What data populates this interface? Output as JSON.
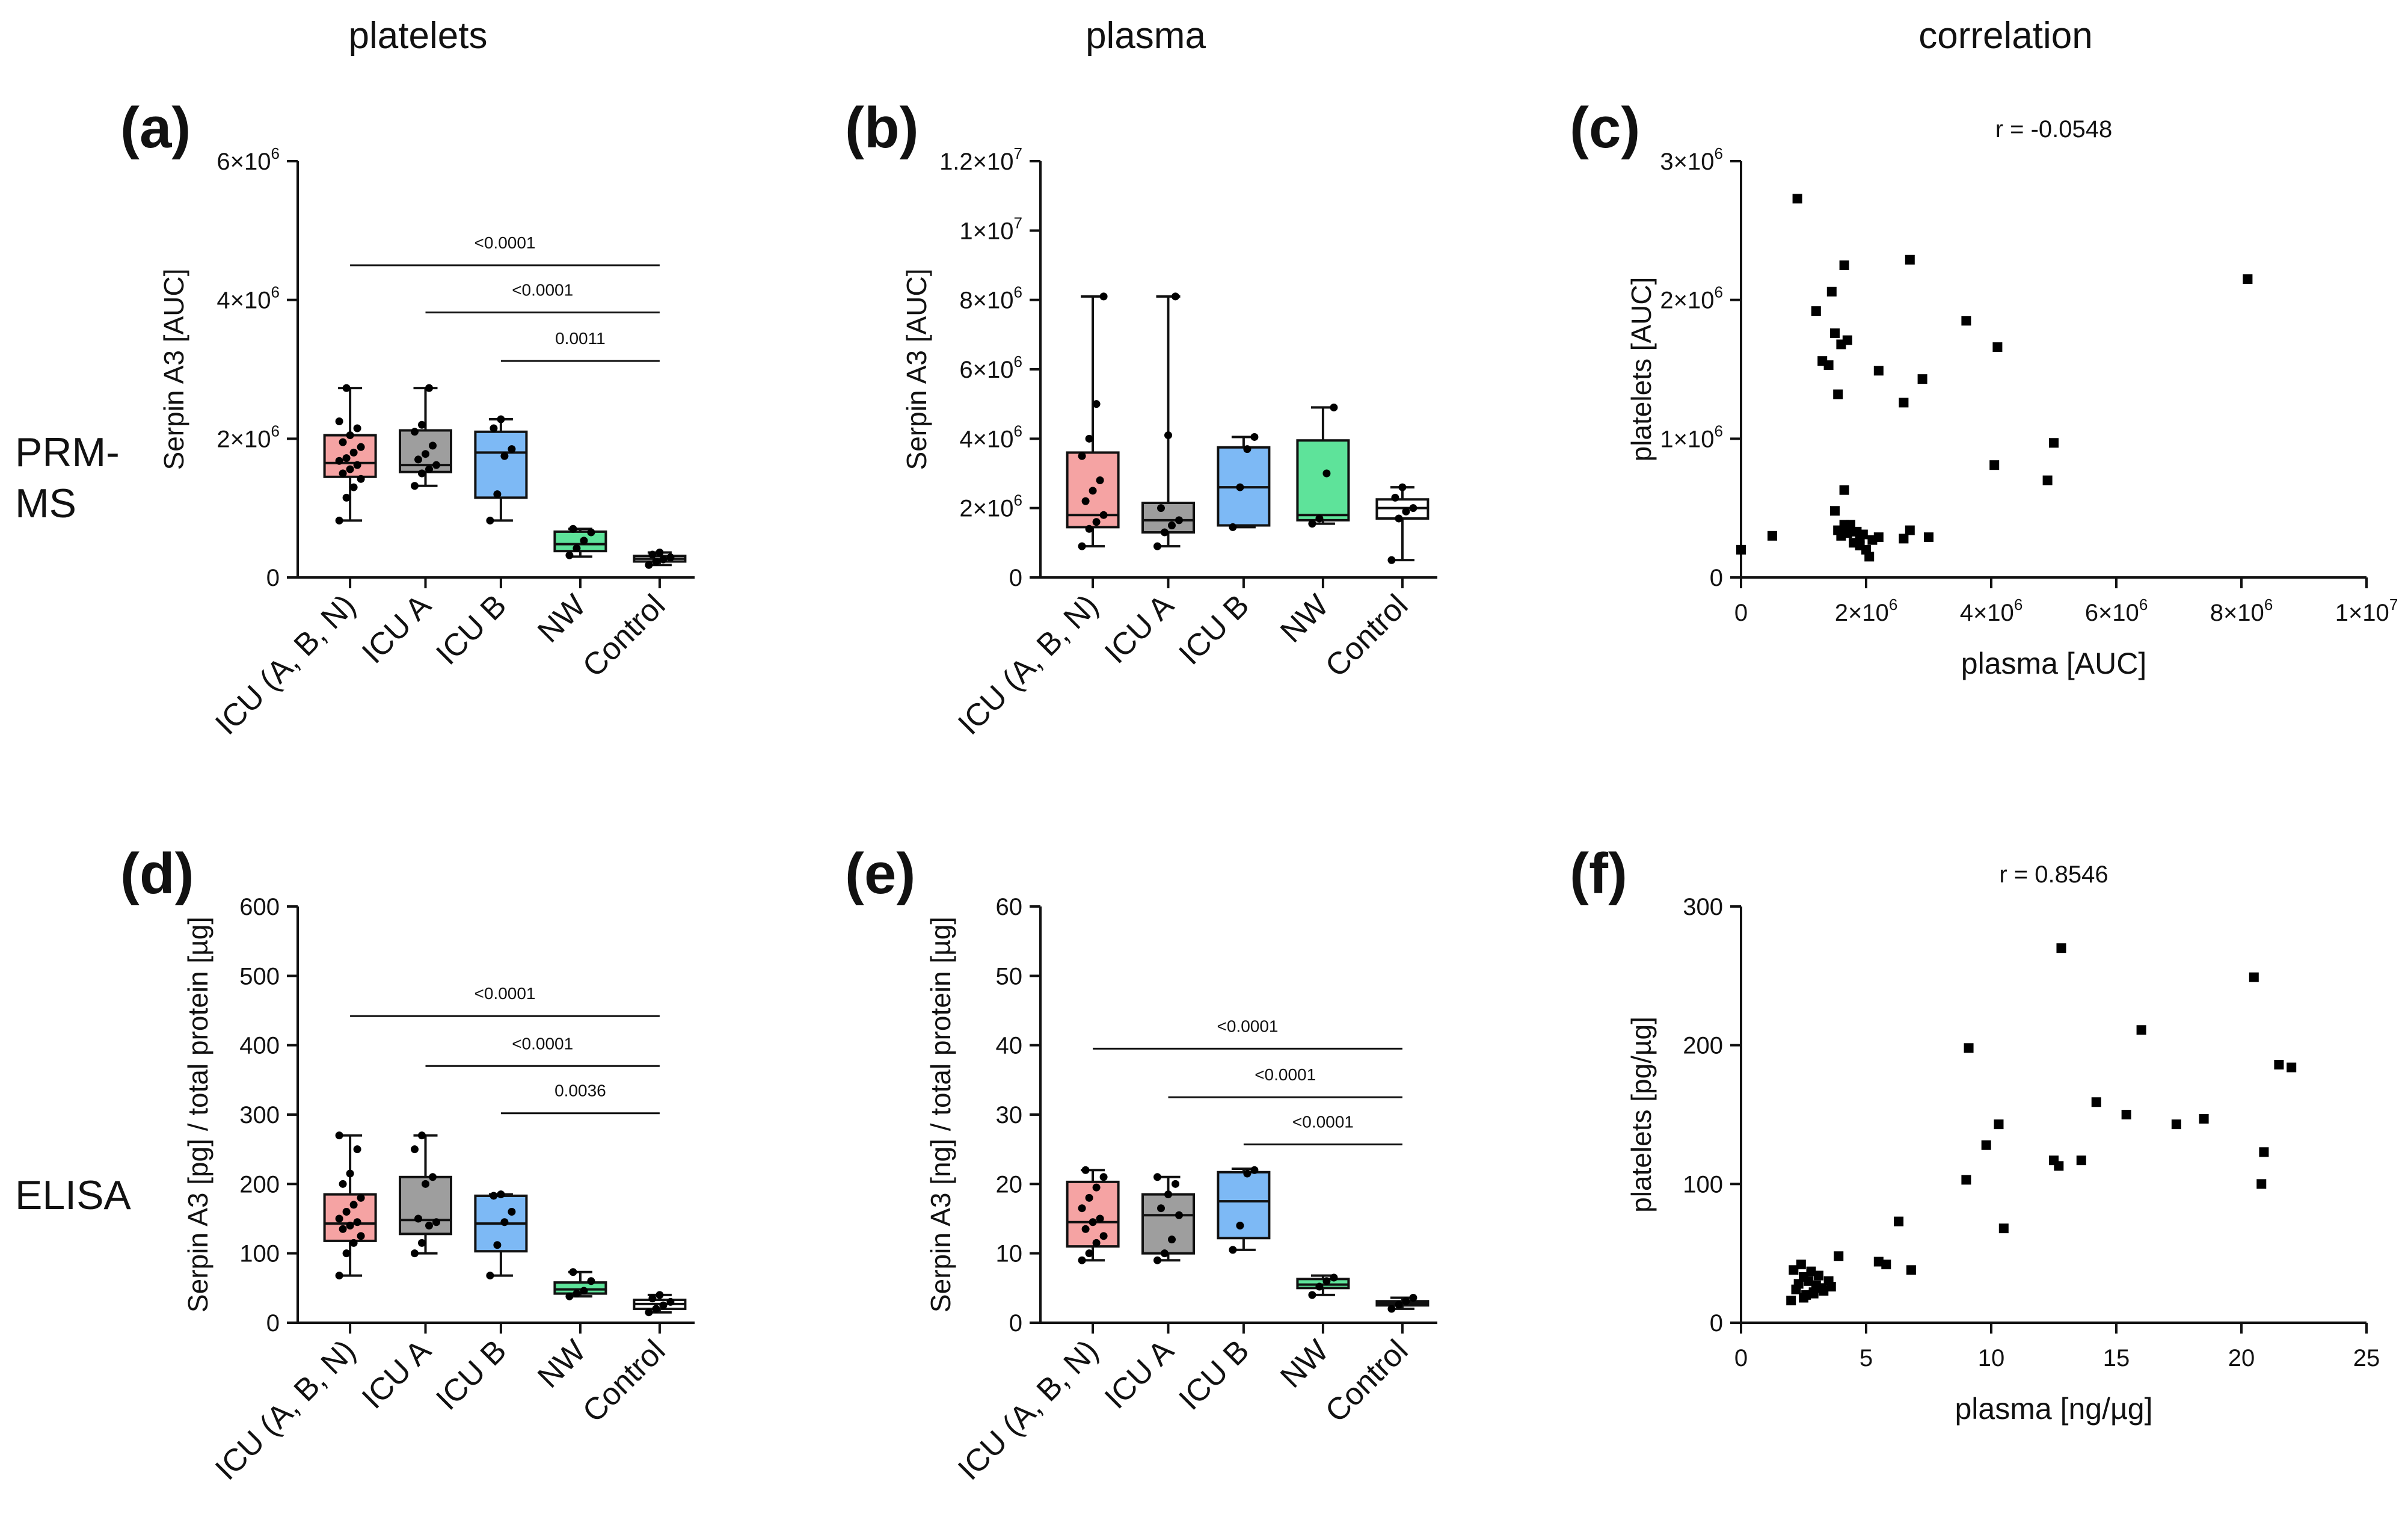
{
  "column_headers": [
    "platelets",
    "plasma",
    "correlation"
  ],
  "row_headers": [
    "PRM-\nMS",
    "ELISA"
  ],
  "colors": {
    "ICU (A, B, N)": "#f5a3a3",
    "ICU A": "#9e9e9e",
    "ICU B": "#7db9f5",
    "NW": "#5ee39a",
    "Control": "#ffffff",
    "axis": "#111111",
    "point": "#000000"
  },
  "chart_data": [
    {
      "id": "a",
      "label": "(a)",
      "type": "box",
      "ylabel": "Serpin A3 [AUC]",
      "ylim": [
        0,
        6000000
      ],
      "yticks": [
        {
          "v": 0,
          "m": "0"
        },
        {
          "v": 2000000,
          "m": "2×10",
          "e": "6"
        },
        {
          "v": 4000000,
          "m": "4×10",
          "e": "6"
        },
        {
          "v": 6000000,
          "m": "6×10",
          "e": "6"
        }
      ],
      "categories": [
        "ICU (A, B, N)",
        "ICU A",
        "ICU B",
        "NW",
        "Control"
      ],
      "boxes": [
        {
          "min": 820000,
          "q1": 1450000,
          "median": 1650000,
          "q3": 2050000,
          "max": 2730000,
          "points": [
            820000,
            1150000,
            1300000,
            1420000,
            1500000,
            1560000,
            1620000,
            1680000,
            1720000,
            1800000,
            1880000,
            1950000,
            2050000,
            2150000,
            2250000,
            2730000
          ]
        },
        {
          "min": 1320000,
          "q1": 1520000,
          "median": 1620000,
          "q3": 2120000,
          "max": 2730000,
          "points": [
            1320000,
            1500000,
            1560000,
            1620000,
            1700000,
            1780000,
            1900000,
            2100000,
            2200000,
            2730000
          ]
        },
        {
          "min": 820000,
          "q1": 1150000,
          "median": 1800000,
          "q3": 2100000,
          "max": 2280000,
          "points": [
            820000,
            1200000,
            1750000,
            1850000,
            2150000,
            2280000
          ]
        },
        {
          "min": 300000,
          "q1": 380000,
          "median": 480000,
          "q3": 660000,
          "max": 700000,
          "points": [
            320000,
            420000,
            530000,
            650000,
            700000
          ]
        },
        {
          "min": 180000,
          "q1": 230000,
          "median": 270000,
          "q3": 310000,
          "max": 360000,
          "points": [
            180000,
            230000,
            260000,
            290000,
            330000,
            360000
          ]
        }
      ],
      "comparisons": [
        {
          "from": 0,
          "to": 4,
          "y": 4500000,
          "label": "<0.0001"
        },
        {
          "from": 1,
          "to": 4,
          "y": 3820000,
          "label": "<0.0001"
        },
        {
          "from": 2,
          "to": 4,
          "y": 3120000,
          "label": "0.0011"
        }
      ]
    },
    {
      "id": "b",
      "label": "(b)",
      "type": "box",
      "ylabel": "Serpin A3 [AUC]",
      "ylim": [
        0,
        12000000
      ],
      "yticks": [
        {
          "v": 0,
          "m": "0"
        },
        {
          "v": 2000000,
          "m": "2×10",
          "e": "6"
        },
        {
          "v": 4000000,
          "m": "4×10",
          "e": "6"
        },
        {
          "v": 6000000,
          "m": "6×10",
          "e": "6"
        },
        {
          "v": 8000000,
          "m": "8×10",
          "e": "6"
        },
        {
          "v": 10000000,
          "m": "1×10",
          "e": "7"
        },
        {
          "v": 12000000,
          "m": "1.2×10",
          "e": "7"
        }
      ],
      "categories": [
        "ICU (A, B, N)",
        "ICU A",
        "ICU B",
        "NW",
        "Control"
      ],
      "boxes": [
        {
          "min": 900000,
          "q1": 1450000,
          "median": 1800000,
          "q3": 3600000,
          "max": 8100000,
          "points": [
            900000,
            1400000,
            1600000,
            1800000,
            2200000,
            2500000,
            2800000,
            3500000,
            4000000,
            5000000,
            8100000
          ]
        },
        {
          "min": 900000,
          "q1": 1300000,
          "median": 1650000,
          "q3": 2150000,
          "max": 8100000,
          "points": [
            900000,
            1300000,
            1500000,
            1650000,
            2000000,
            4100000,
            8100000
          ]
        },
        {
          "min": 1450000,
          "q1": 1500000,
          "median": 2600000,
          "q3": 3750000,
          "max": 4050000,
          "points": [
            1450000,
            2600000,
            3700000,
            4050000
          ]
        },
        {
          "min": 1550000,
          "q1": 1650000,
          "median": 1800000,
          "q3": 3950000,
          "max": 4900000,
          "points": [
            1550000,
            1700000,
            3000000,
            4900000
          ]
        },
        {
          "min": 500000,
          "q1": 1700000,
          "median": 2000000,
          "q3": 2250000,
          "max": 2600000,
          "points": [
            500000,
            1700000,
            1900000,
            2000000,
            2300000,
            2600000
          ]
        }
      ],
      "comparisons": []
    },
    {
      "id": "c",
      "label": "(c)",
      "type": "scatter",
      "annotation": "r = -0.0548",
      "xlabel": "plasma [AUC]",
      "ylabel": "platelets [AUC]",
      "xlim": [
        0,
        10000000
      ],
      "ylim": [
        0,
        3000000
      ],
      "xticks": [
        {
          "v": 0,
          "m": "0"
        },
        {
          "v": 2000000,
          "m": "2×10",
          "e": "6"
        },
        {
          "v": 4000000,
          "m": "4×10",
          "e": "6"
        },
        {
          "v": 6000000,
          "m": "6×10",
          "e": "6"
        },
        {
          "v": 8000000,
          "m": "8×10",
          "e": "6"
        },
        {
          "v": 10000000,
          "m": "1×10",
          "e": "7"
        }
      ],
      "yticks": [
        {
          "v": 0,
          "m": "0"
        },
        {
          "v": 1000000,
          "m": "1×10",
          "e": "6"
        },
        {
          "v": 2000000,
          "m": "2×10",
          "e": "6"
        },
        {
          "v": 3000000,
          "m": "3×10",
          "e": "6"
        }
      ],
      "x": [
        0,
        500000,
        900000,
        1200000,
        1300000,
        1400000,
        1450000,
        1500000,
        1550000,
        1600000,
        1650000,
        1700000,
        2200000,
        2600000,
        2700000,
        2900000,
        3600000,
        4050000,
        4100000,
        4900000,
        5000000,
        8100000,
        1500000,
        1550000,
        1600000,
        1650000,
        1700000,
        1750000,
        1800000,
        1850000,
        1900000,
        1950000,
        2000000,
        2050000,
        2100000,
        2200000,
        2600000,
        2700000,
        3000000,
        1650000,
        1900000
      ],
      "y": [
        200000,
        300000,
        2730000,
        1920000,
        1560000,
        1530000,
        2060000,
        1760000,
        1320000,
        1680000,
        2250000,
        1710000,
        1490000,
        1260000,
        2290000,
        1430000,
        1850000,
        810000,
        1660000,
        700000,
        970000,
        2150000,
        480000,
        340000,
        300000,
        630000,
        320000,
        380000,
        250000,
        330000,
        280000,
        310000,
        200000,
        150000,
        270000,
        290000,
        280000,
        340000,
        290000,
        380000,
        230000
      ]
    },
    {
      "id": "d",
      "label": "(d)",
      "type": "box",
      "ylabel": "Serpin A3 [pg] / total protein [µg]",
      "ylim": [
        0,
        600
      ],
      "yticks": [
        {
          "v": 0,
          "m": "0"
        },
        {
          "v": 100,
          "m": "100"
        },
        {
          "v": 200,
          "m": "200"
        },
        {
          "v": 300,
          "m": "300"
        },
        {
          "v": 400,
          "m": "400"
        },
        {
          "v": 500,
          "m": "500"
        },
        {
          "v": 600,
          "m": "600"
        }
      ],
      "categories": [
        "ICU (A, B, N)",
        "ICU A",
        "ICU B",
        "NW",
        "Control"
      ],
      "boxes": [
        {
          "min": 68,
          "q1": 118,
          "median": 143,
          "q3": 185,
          "max": 270,
          "points": [
            68,
            100,
            115,
            125,
            135,
            140,
            145,
            150,
            160,
            170,
            180,
            200,
            215,
            250,
            270
          ]
        },
        {
          "min": 100,
          "q1": 128,
          "median": 148,
          "q3": 210,
          "max": 270,
          "points": [
            100,
            115,
            140,
            145,
            150,
            200,
            210,
            250,
            270
          ]
        },
        {
          "min": 68,
          "q1": 103,
          "median": 143,
          "q3": 183,
          "max": 185,
          "points": [
            68,
            112,
            145,
            160,
            183,
            185
          ]
        },
        {
          "min": 38,
          "q1": 42,
          "median": 48,
          "q3": 58,
          "max": 73,
          "points": [
            38,
            42,
            46,
            60,
            73
          ]
        },
        {
          "min": 15,
          "q1": 20,
          "median": 27,
          "q3": 33,
          "max": 40,
          "points": [
            15,
            20,
            25,
            30,
            35,
            40
          ]
        }
      ],
      "comparisons": [
        {
          "from": 0,
          "to": 4,
          "y": 442,
          "label": "<0.0001"
        },
        {
          "from": 1,
          "to": 4,
          "y": 370,
          "label": "<0.0001"
        },
        {
          "from": 2,
          "to": 4,
          "y": 302,
          "label": "0.0036"
        }
      ]
    },
    {
      "id": "e",
      "label": "(e)",
      "type": "box",
      "ylabel": "Serpin A3 [ng] / total protein [µg]",
      "ylim": [
        0,
        60
      ],
      "yticks": [
        {
          "v": 0,
          "m": "0"
        },
        {
          "v": 10,
          "m": "10"
        },
        {
          "v": 20,
          "m": "20"
        },
        {
          "v": 30,
          "m": "30"
        },
        {
          "v": 40,
          "m": "40"
        },
        {
          "v": 50,
          "m": "50"
        },
        {
          "v": 60,
          "m": "60"
        }
      ],
      "categories": [
        "ICU (A, B, N)",
        "ICU A",
        "ICU B",
        "NW",
        "Control"
      ],
      "boxes": [
        {
          "min": 9,
          "q1": 11,
          "median": 14.5,
          "q3": 20.3,
          "max": 22,
          "points": [
            9,
            10,
            11.5,
            12.5,
            13.5,
            14.5,
            15,
            16.5,
            18,
            19.5,
            21,
            22
          ]
        },
        {
          "min": 9,
          "q1": 10,
          "median": 15.5,
          "q3": 18.5,
          "max": 21,
          "points": [
            9,
            10,
            12,
            15.5,
            16.5,
            18.5,
            20,
            21
          ]
        },
        {
          "min": 10.5,
          "q1": 12.2,
          "median": 17.5,
          "q3": 21.7,
          "max": 22.2,
          "points": [
            10.5,
            14,
            21.5,
            22
          ]
        },
        {
          "min": 4,
          "q1": 5,
          "median": 5.5,
          "q3": 6.3,
          "max": 6.8,
          "points": [
            4,
            5.2,
            6,
            6.5
          ]
        },
        {
          "min": 2,
          "q1": 2.5,
          "median": 2.8,
          "q3": 3.1,
          "max": 3.6,
          "points": [
            2,
            2.6,
            3.1,
            3.6
          ]
        }
      ],
      "comparisons": [
        {
          "from": 0,
          "to": 4,
          "y": 39.5,
          "label": "<0.0001"
        },
        {
          "from": 1,
          "to": 4,
          "y": 32.5,
          "label": "<0.0001"
        },
        {
          "from": 2,
          "to": 4,
          "y": 25.7,
          "label": "<0.0001"
        }
      ]
    },
    {
      "id": "f",
      "label": "(f)",
      "type": "scatter",
      "annotation": "r = 0.8546",
      "xlabel": "plasma [ng/µg]",
      "ylabel": "platelets [pg/µg]",
      "xlim": [
        0,
        25
      ],
      "ylim": [
        0,
        300
      ],
      "xticks": [
        {
          "v": 0,
          "m": "0"
        },
        {
          "v": 5,
          "m": "5"
        },
        {
          "v": 10,
          "m": "10"
        },
        {
          "v": 15,
          "m": "15"
        },
        {
          "v": 20,
          "m": "20"
        },
        {
          "v": 25,
          "m": "25"
        }
      ],
      "yticks": [
        {
          "v": 0,
          "m": "0"
        },
        {
          "v": 100,
          "m": "100"
        },
        {
          "v": 200,
          "m": "200"
        },
        {
          "v": 300,
          "m": "300"
        }
      ],
      "x": [
        2.0,
        2.1,
        2.3,
        2.4,
        2.5,
        2.6,
        2.7,
        2.8,
        2.9,
        3.0,
        3.1,
        3.3,
        3.5,
        3.6,
        3.9,
        2.2,
        2.5,
        2.9,
        3.2,
        5.5,
        5.8,
        6.3,
        6.8,
        9.0,
        9.1,
        9.8,
        10.3,
        10.5,
        12.5,
        12.7,
        12.8,
        13.6,
        14.2,
        15.4,
        16.0,
        17.4,
        18.5,
        20.5,
        20.8,
        20.9,
        21.5,
        22.0
      ],
      "y": [
        16,
        38,
        28,
        42,
        33,
        20,
        30,
        37,
        22,
        27,
        34,
        23,
        30,
        26,
        48,
        24,
        18,
        21,
        25,
        44,
        42,
        73,
        38,
        103,
        198,
        128,
        143,
        68,
        117,
        113,
        270,
        117,
        159,
        150,
        211,
        143,
        147,
        249,
        100,
        123,
        186,
        184
      ]
    }
  ]
}
